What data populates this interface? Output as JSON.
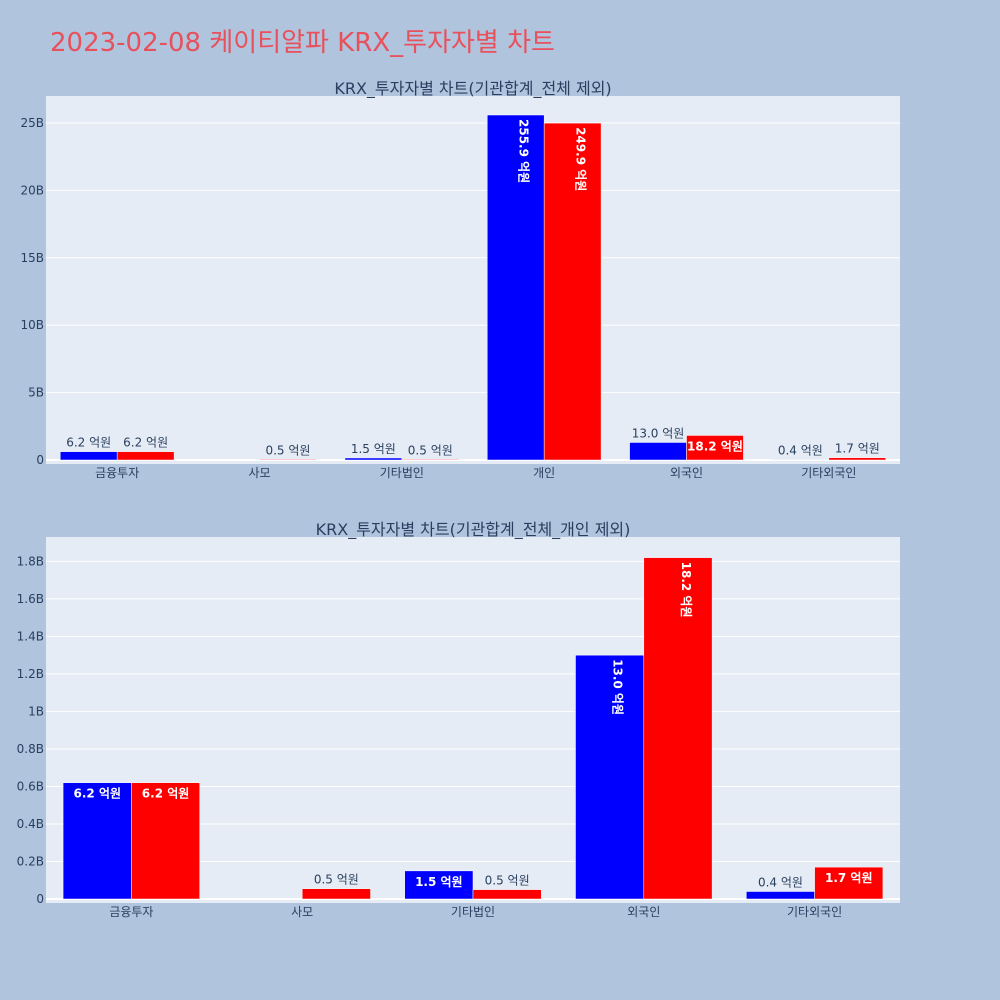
{
  "title": "2023-02-08 케이티알파 KRX_투자자별 차트",
  "colors": {
    "buy": "#0000ff",
    "sell": "#ff0000",
    "plot_bg": "#e5ecf6",
    "page_bg": "#b0c4de",
    "title": "#e8505b"
  },
  "chart_data": [
    {
      "type": "bar",
      "title": "KRX_투자자별 차트(기관합계_전체 제외)",
      "categories": [
        "금융투자",
        "사모",
        "기타법인",
        "개인",
        "외국인",
        "기타외국인"
      ],
      "ylim": [
        0,
        27
      ],
      "y_ticks": [
        0,
        5,
        10,
        15,
        20,
        25
      ],
      "y_tick_labels": [
        "0",
        "5B",
        "10B",
        "15B",
        "20B",
        "25B"
      ],
      "grid": true,
      "series": [
        {
          "values": [
            0.62,
            0,
            0.15,
            25.59,
            1.3,
            0.04
          ],
          "labels": [
            "6.2 억원",
            "",
            "1.5 억원",
            "255.9 억원",
            "13.0 억원",
            "0.4 억원"
          ]
        },
        {
          "values": [
            0.62,
            0.05,
            0.05,
            24.99,
            1.82,
            0.17
          ],
          "labels": [
            "6.2 억원",
            "0.5 억원",
            "0.5 억원",
            "249.9 억원",
            "18.2 억원",
            "1.7 억원"
          ]
        }
      ]
    },
    {
      "type": "bar",
      "title": "KRX_투자자별 차트(기관합계_전체_개인 제외)",
      "categories": [
        "금융투자",
        "사모",
        "기타법인",
        "외국인",
        "기타외국인"
      ],
      "ylim": [
        0,
        1.93
      ],
      "y_ticks": [
        0,
        0.2,
        0.4,
        0.6,
        0.8,
        1,
        1.2,
        1.4,
        1.6,
        1.8
      ],
      "y_tick_labels": [
        "0",
        "0.2B",
        "0.4B",
        "0.6B",
        "0.8B",
        "1B",
        "1.2B",
        "1.4B",
        "1.6B",
        "1.8B"
      ],
      "grid": true,
      "series": [
        {
          "values": [
            0.62,
            0,
            0.15,
            1.3,
            0.04
          ],
          "labels": [
            "6.2 억원",
            "",
            "1.5 억원",
            "13.0 억원",
            "0.4 억원"
          ]
        },
        {
          "values": [
            0.62,
            0.055,
            0.05,
            1.82,
            0.17
          ],
          "labels": [
            "6.2 억원",
            "0.5 억원",
            "0.5 억원",
            "18.2 억원",
            "1.7 억원"
          ]
        }
      ]
    }
  ]
}
